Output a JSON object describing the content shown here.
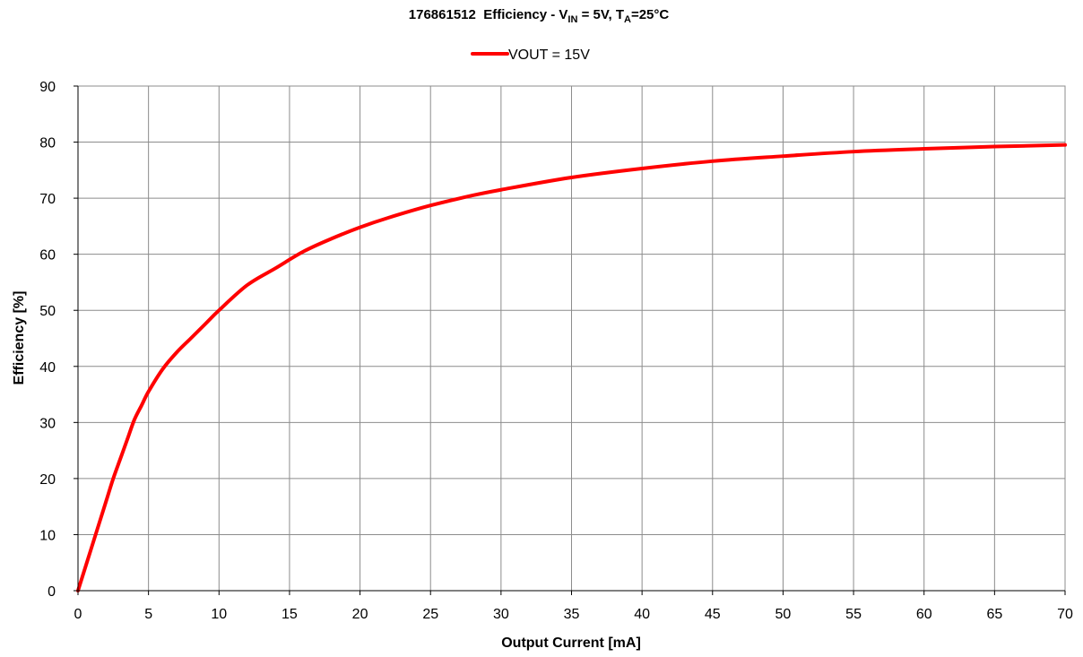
{
  "chart_data": {
    "type": "line",
    "title": {
      "part_number": "176861512",
      "prefix": "Efficiency - V",
      "vin_subscript": "IN",
      "middle": " = 5V, T",
      "ta_subscript": "A",
      "suffix": "=25°C"
    },
    "xlabel": "Output Current [mA]",
    "ylabel": "Efficiency [%]",
    "xlim": [
      0,
      70
    ],
    "ylim": [
      0,
      90
    ],
    "xticks": [
      0,
      5,
      10,
      15,
      20,
      25,
      30,
      35,
      40,
      45,
      50,
      55,
      60,
      65,
      70
    ],
    "yticks": [
      0,
      10,
      20,
      30,
      40,
      50,
      60,
      70,
      80,
      90
    ],
    "grid": true,
    "legend_position": "top-center",
    "series": [
      {
        "name": "VOUT = 15V",
        "color": "#ff0000",
        "x": [
          0,
          0.5,
          1,
          1.5,
          2,
          2.5,
          3,
          3.5,
          4,
          4.5,
          5,
          6,
          7,
          8,
          9,
          10,
          12,
          14,
          16,
          18,
          20,
          22,
          25,
          28,
          30,
          35,
          40,
          45,
          50,
          55,
          60,
          65,
          70
        ],
        "y": [
          0,
          4,
          8,
          12,
          16,
          20,
          23.5,
          27,
          30.5,
          33,
          35.5,
          39.5,
          42.5,
          45,
          47.5,
          50,
          54.5,
          57.5,
          60.5,
          62.8,
          64.8,
          66.5,
          68.7,
          70.5,
          71.5,
          73.7,
          75.3,
          76.6,
          77.5,
          78.3,
          78.8,
          79.2,
          79.5
        ]
      }
    ]
  }
}
